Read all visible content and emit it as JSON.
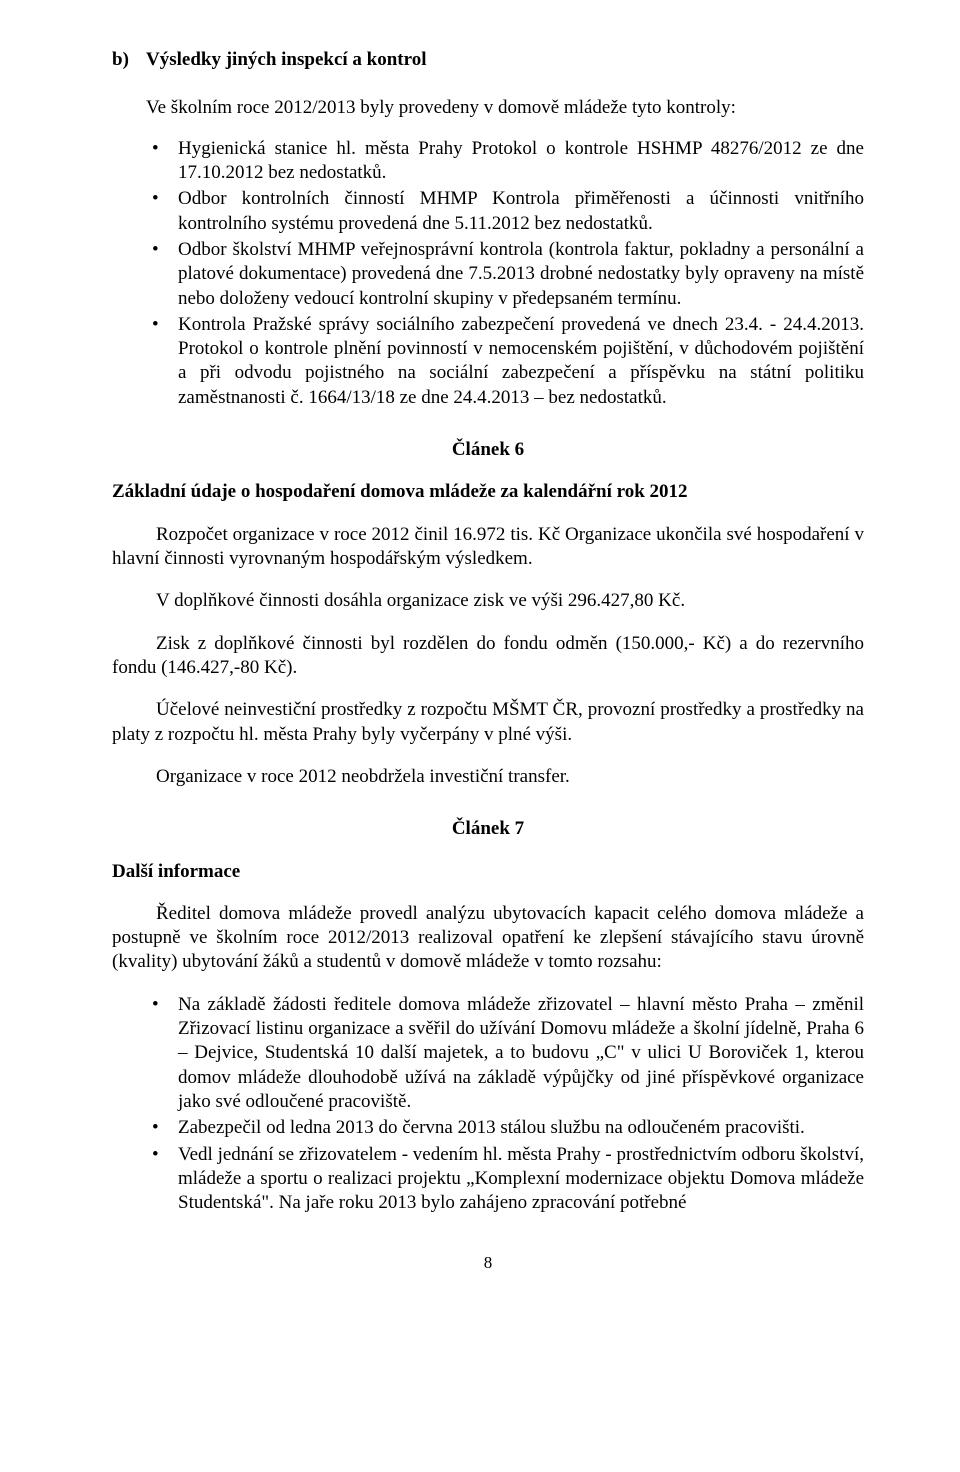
{
  "sectionB": {
    "marker": "b)",
    "title": "Výsledky jiných inspekcí a kontrol",
    "intro": "Ve školním roce 2012/2013 byly provedeny v domově mládeže tyto kontroly:",
    "bullets": [
      "Hygienická stanice hl. města Prahy Protokol o kontrole HSHMP 48276/2012 ze dne 17.10.2012 bez nedostatků.",
      "Odbor kontrolních činností MHMP Kontrola přiměřenosti a účinnosti vnitřního kontrolního systému provedená dne 5.11.2012 bez nedostatků.",
      "Odbor školství MHMP veřejnosprávní kontrola (kontrola faktur, pokladny a personální a platové dokumentace) provedená dne 7.5.2013 drobné nedostatky byly opraveny na místě nebo doloženy vedoucí kontrolní skupiny v předepsaném termínu.",
      "Kontrola Pražské správy sociálního zabezpečení provedená ve dnech 23.4. - 24.4.2013. Protokol o kontrole plnění povinností v nemocenském pojištění, v důchodovém pojištění a při odvodu pojistného na sociální zabezpečení a příspěvku na státní politiku zaměstnanosti č. 1664/13/18 ze dne 24.4.2013 – bez nedostatků."
    ]
  },
  "article6": {
    "heading": "Článek 6",
    "subheading": "Základní údaje o hospodaření domova mládeže za kalendářní rok 2012",
    "paragraphs": [
      "Rozpočet organizace v roce 2012 činil 16.972 tis. Kč Organizace ukončila své hospodaření v hlavní činnosti vyrovnaným hospodářským výsledkem.",
      "V doplňkové činnosti dosáhla organizace zisk ve výši 296.427,80 Kč.",
      "Zisk z doplňkové činnosti byl rozdělen do fondu odměn (150.000,- Kč) a do rezervního fondu (146.427,-80 Kč).",
      "Účelové neinvestiční prostředky z rozpočtu MŠMT ČR, provozní prostředky a prostředky na platy z rozpočtu hl. města Prahy byly vyčerpány v plné výši.",
      "Organizace v roce 2012 neobdržela investiční transfer."
    ]
  },
  "article7": {
    "heading": "Článek 7",
    "subheading": "Další informace",
    "intro": "Ředitel domova mládeže provedl analýzu ubytovacích kapacit celého domova mládeže a postupně ve školním roce 2012/2013 realizoval opatření ke zlepšení stávajícího stavu úrovně (kvality) ubytování žáků a studentů v domově mládeže v tomto rozsahu:",
    "bullets": [
      "Na základě žádosti ředitele domova mládeže zřizovatel – hlavní město Praha – změnil Zřizovací listinu organizace a svěřil do užívání Domovu mládeže a školní jídelně, Praha 6 – Dejvice, Studentská 10 další majetek, a to budovu „C\" v ulici U Boroviček 1, kterou domov mládeže dlouhodobě užívá na základě výpůjčky od jiné příspěvkové organizace jako své odloučené pracoviště.",
      "Zabezpečil od ledna 2013 do června 2013 stálou službu na odloučeném pracovišti.",
      "Vedl jednání se zřizovatelem  - vedením hl. města Prahy - prostřednictvím odboru školství, mládeže a sportu o realizaci projektu „Komplexní modernizace objektu Domova mládeže Studentská\". Na jaře roku 2013 bylo zahájeno zpracování potřebné"
    ]
  },
  "pageNumber": "8"
}
